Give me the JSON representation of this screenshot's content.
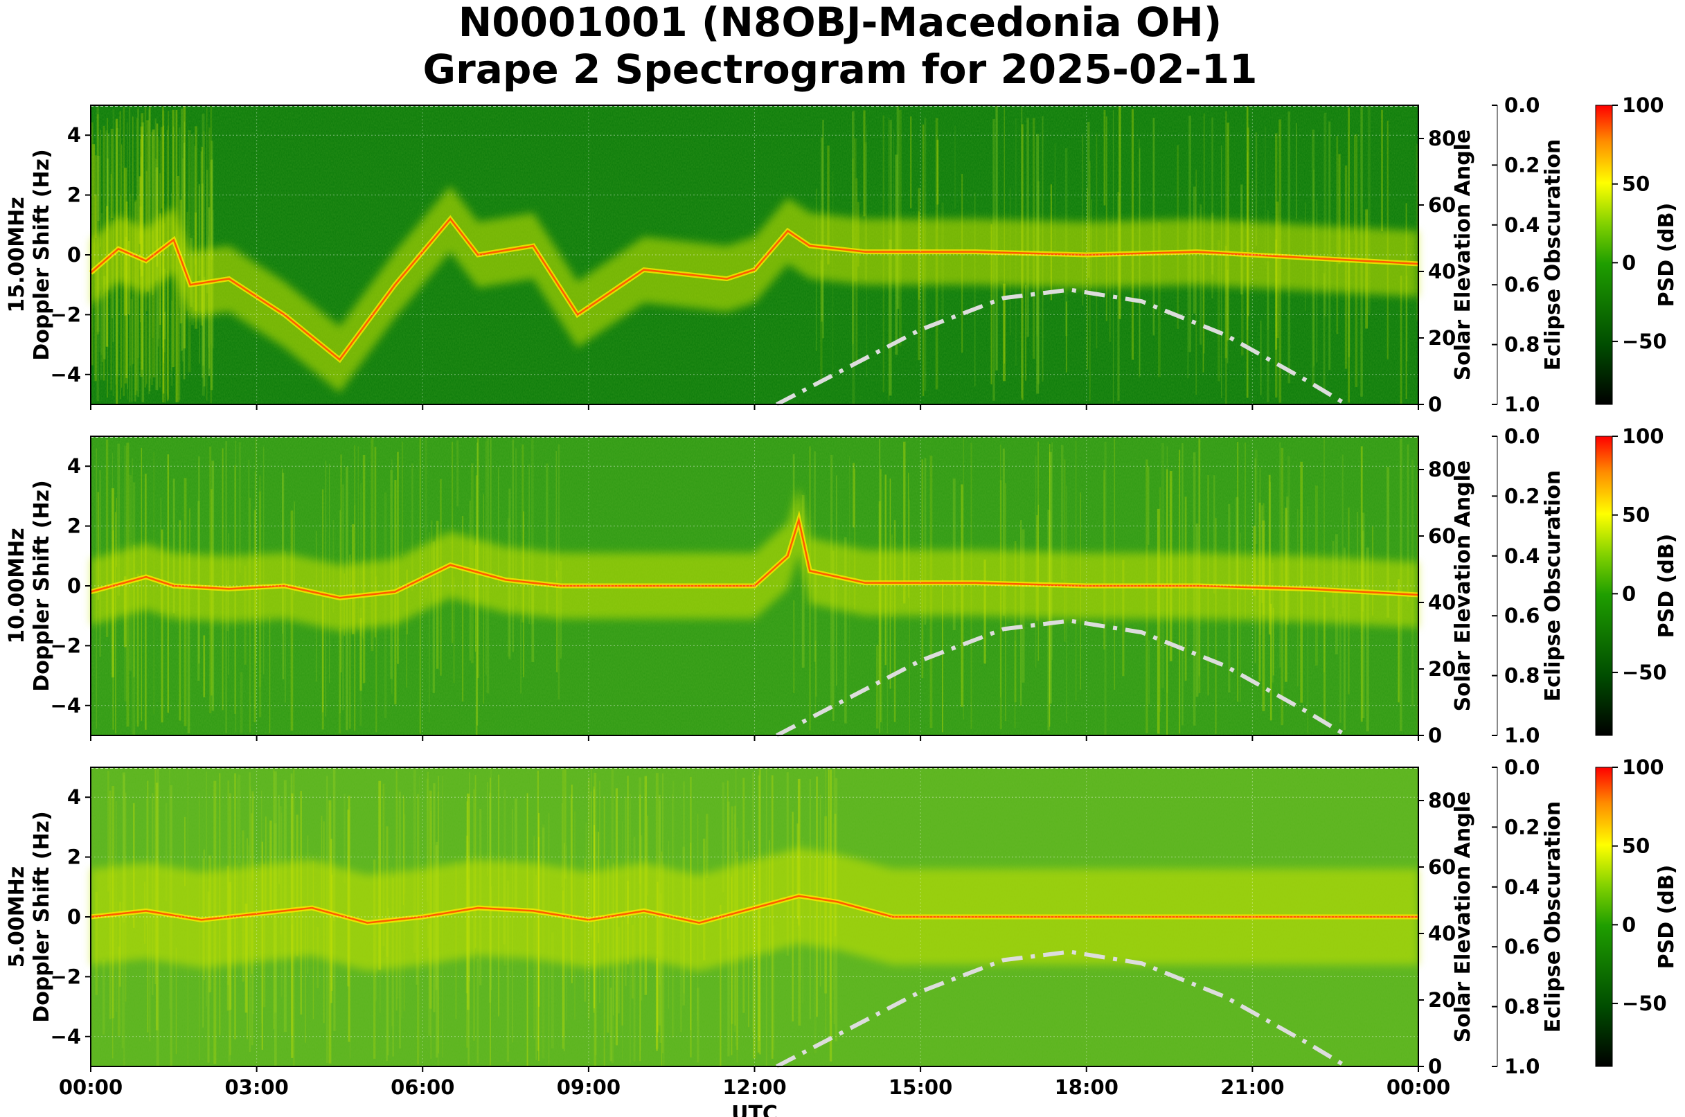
{
  "title_lines": [
    "N0001001 (N8OBJ-Macedonia OH)",
    "Grape 2 Spectrogram for 2025-02-11"
  ],
  "colors": {
    "background_green": "#0a7d0a",
    "mid_green": "#3fa619",
    "yellow": "#e6f000",
    "red": "#ff2000",
    "solar_curve": "#dddddd"
  },
  "chart_data": [
    {
      "type": "heatmap",
      "frequency": "15.00MHz",
      "ylabel_line1": "15.00MHz",
      "ylabel_line2": "Doppler Shift (Hz)",
      "ylim": [
        -5,
        5
      ],
      "yticks": [
        "4",
        "2",
        "0",
        "−2",
        "−4"
      ],
      "right_ylabel": "Solar Elevation Angle",
      "right_ylim": [
        0,
        90
      ],
      "right_yticks": [
        "0",
        "20",
        "40",
        "60",
        "80"
      ],
      "eclipse_label": "Eclipse Obscuration",
      "eclipse_ylim": [
        0.0,
        1.0
      ],
      "eclipse_ticks": [
        "0.0",
        "0.2",
        "0.4",
        "0.6",
        "0.8",
        "1.0"
      ],
      "colorbar_label": "PSD (dB)",
      "colorbar_range": [
        -90,
        100
      ],
      "colorbar_ticks": [
        "100",
        "50",
        "0",
        "−50"
      ],
      "doppler_trace_hours": [
        0.0,
        0.5,
        1.0,
        1.5,
        1.8,
        2.5,
        3.5,
        4.5,
        5.5,
        6.5,
        7.0,
        8.0,
        8.8,
        10.0,
        11.5,
        12.0,
        12.6,
        13.0,
        14.0,
        16.0,
        18.0,
        20.0,
        22.0,
        24.0
      ],
      "doppler_trace_hz": [
        -0.6,
        0.2,
        -0.2,
        0.5,
        -1.0,
        -0.8,
        -2.0,
        -3.5,
        -1.0,
        1.2,
        0.0,
        0.3,
        -2.0,
        -0.5,
        -0.8,
        -0.5,
        0.8,
        0.3,
        0.1,
        0.1,
        0.0,
        0.1,
        -0.1,
        -0.3
      ],
      "solar_elevation_hours": [
        12.4,
        13.5,
        15.0,
        16.5,
        17.7,
        19.0,
        20.5,
        22.0,
        22.7
      ],
      "solar_elevation_deg": [
        0,
        9.5,
        22.5,
        32,
        34.5,
        31,
        21,
        7,
        0
      ]
    },
    {
      "type": "heatmap",
      "frequency": "10.00MHz",
      "ylabel_line1": "10.00MHz",
      "ylabel_line2": "Doppler Shift (Hz)",
      "ylim": [
        -5,
        5
      ],
      "yticks": [
        "4",
        "2",
        "0",
        "−2",
        "−4"
      ],
      "right_ylabel": "Solar Elevation Angle",
      "right_ylim": [
        0,
        90
      ],
      "right_yticks": [
        "0",
        "20",
        "40",
        "60",
        "80"
      ],
      "eclipse_label": "Eclipse Obscuration",
      "eclipse_ylim": [
        0.0,
        1.0
      ],
      "eclipse_ticks": [
        "0.0",
        "0.2",
        "0.4",
        "0.6",
        "0.8",
        "1.0"
      ],
      "colorbar_label": "PSD (dB)",
      "colorbar_range": [
        -90,
        100
      ],
      "colorbar_ticks": [
        "100",
        "50",
        "0",
        "−50"
      ],
      "doppler_trace_hours": [
        0.0,
        1.0,
        1.5,
        2.5,
        3.5,
        4.5,
        5.5,
        6.5,
        7.5,
        8.5,
        12.0,
        12.6,
        12.8,
        13.0,
        14.0,
        16.0,
        18.0,
        20.0,
        22.0,
        24.0
      ],
      "doppler_trace_hz": [
        -0.2,
        0.3,
        0.0,
        -0.1,
        0.0,
        -0.4,
        -0.2,
        0.7,
        0.2,
        0.0,
        0.0,
        1.0,
        2.2,
        0.5,
        0.1,
        0.1,
        0.0,
        0.0,
        -0.1,
        -0.3
      ],
      "solar_elevation_hours": [
        12.4,
        13.5,
        15.0,
        16.5,
        17.7,
        19.0,
        20.5,
        22.0,
        22.7
      ],
      "solar_elevation_deg": [
        0,
        9.5,
        22.5,
        32,
        34.5,
        31,
        21,
        7,
        0
      ]
    },
    {
      "type": "heatmap",
      "frequency": "5.00MHz",
      "ylabel_line1": "5.00MHz",
      "ylabel_line2": "Doppler Shift (Hz)",
      "ylim": [
        -5,
        5
      ],
      "yticks": [
        "4",
        "2",
        "0",
        "−2",
        "−4"
      ],
      "right_ylabel": "Solar Elevation Angle",
      "right_ylim": [
        0,
        90
      ],
      "right_yticks": [
        "0",
        "20",
        "40",
        "60",
        "80"
      ],
      "eclipse_label": "Eclipse Obscuration",
      "eclipse_ylim": [
        0.0,
        1.0
      ],
      "eclipse_ticks": [
        "0.0",
        "0.2",
        "0.4",
        "0.6",
        "0.8",
        "1.0"
      ],
      "colorbar_label": "PSD (dB)",
      "colorbar_range": [
        -90,
        100
      ],
      "colorbar_ticks": [
        "100",
        "50",
        "0",
        "−50"
      ],
      "xlabel": "UTC",
      "xticks": [
        "00:00",
        "03:00",
        "06:00",
        "09:00",
        "12:00",
        "15:00",
        "18:00",
        "21:00",
        "00:00"
      ],
      "xlim_hours": [
        0,
        24
      ],
      "doppler_trace_hours": [
        0.0,
        1.0,
        2.0,
        3.0,
        4.0,
        5.0,
        6.0,
        7.0,
        8.0,
        9.0,
        10.0,
        11.0,
        12.0,
        12.8,
        13.5,
        14.5,
        24.0
      ],
      "doppler_trace_hz": [
        0.0,
        0.2,
        -0.1,
        0.1,
        0.3,
        -0.2,
        0.0,
        0.3,
        0.2,
        -0.1,
        0.2,
        -0.2,
        0.3,
        0.7,
        0.5,
        0.0,
        0.0
      ],
      "solar_elevation_hours": [
        12.4,
        13.5,
        15.0,
        16.5,
        17.7,
        19.0,
        20.5,
        22.0,
        22.7
      ],
      "solar_elevation_deg": [
        0,
        9.5,
        22.5,
        32,
        34.5,
        31,
        21,
        7,
        0
      ]
    }
  ]
}
